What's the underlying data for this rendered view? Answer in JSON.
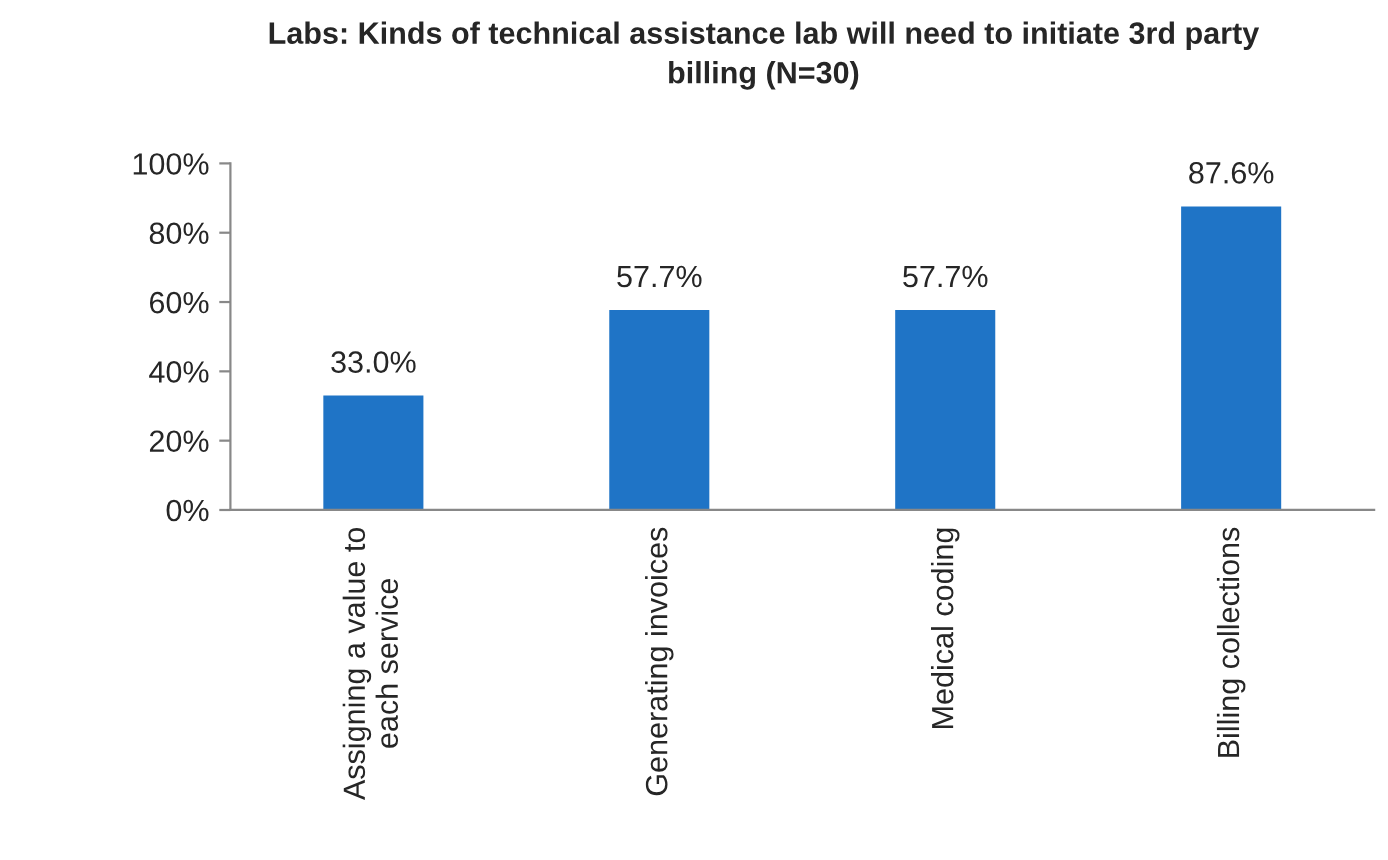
{
  "chart_data": {
    "type": "bar",
    "title": "Labs: Kinds of technical assistance lab will need to initiate 3rd party\nbilling (N=30)",
    "categories": [
      "Assigning a value to\neach service",
      "Generating invoices",
      "Medical coding",
      "Billing collections"
    ],
    "values": [
      33.0,
      57.7,
      57.7,
      87.6
    ],
    "value_labels": [
      "33.0%",
      "57.7%",
      "57.7%",
      "87.6%"
    ],
    "color": "#1f74c6",
    "ylim": [
      0,
      100
    ],
    "yticks": [
      {
        "value": 0,
        "label": "0%"
      },
      {
        "value": 20,
        "label": "20%"
      },
      {
        "value": 40,
        "label": "40%"
      },
      {
        "value": 60,
        "label": "60%"
      },
      {
        "value": 80,
        "label": "80%"
      },
      {
        "value": 100,
        "label": "100%"
      }
    ],
    "grid": false,
    "legend": false
  }
}
